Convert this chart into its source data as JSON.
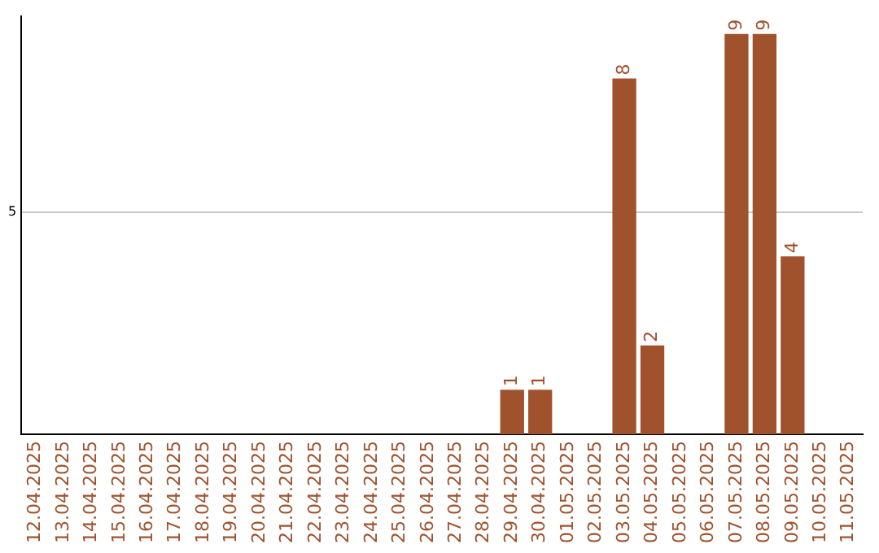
{
  "chart_data": {
    "type": "bar",
    "categories": [
      "12.04.2025",
      "13.04.2025",
      "14.04.2025",
      "15.04.2025",
      "16.04.2025",
      "17.04.2025",
      "18.04.2025",
      "19.04.2025",
      "20.04.2025",
      "21.04.2025",
      "22.04.2025",
      "23.04.2025",
      "24.04.2025",
      "25.04.2025",
      "26.04.2025",
      "27.04.2025",
      "28.04.2025",
      "29.04.2025",
      "30.04.2025",
      "01.05.2025",
      "02.05.2025",
      "03.05.2025",
      "04.05.2025",
      "05.05.2025",
      "06.05.2025",
      "07.05.2025",
      "08.05.2025",
      "09.05.2025",
      "10.05.2025",
      "11.05.2025"
    ],
    "values": [
      null,
      null,
      null,
      null,
      null,
      null,
      null,
      null,
      null,
      null,
      null,
      null,
      null,
      null,
      null,
      null,
      null,
      1,
      1,
      null,
      null,
      8,
      2,
      null,
      null,
      9,
      9,
      4,
      null,
      null
    ],
    "color": "#a0522d",
    "ylim": [
      0,
      9.4
    ],
    "yticks": [
      5
    ],
    "grid": "y",
    "data_labels": true,
    "legend": false
  }
}
